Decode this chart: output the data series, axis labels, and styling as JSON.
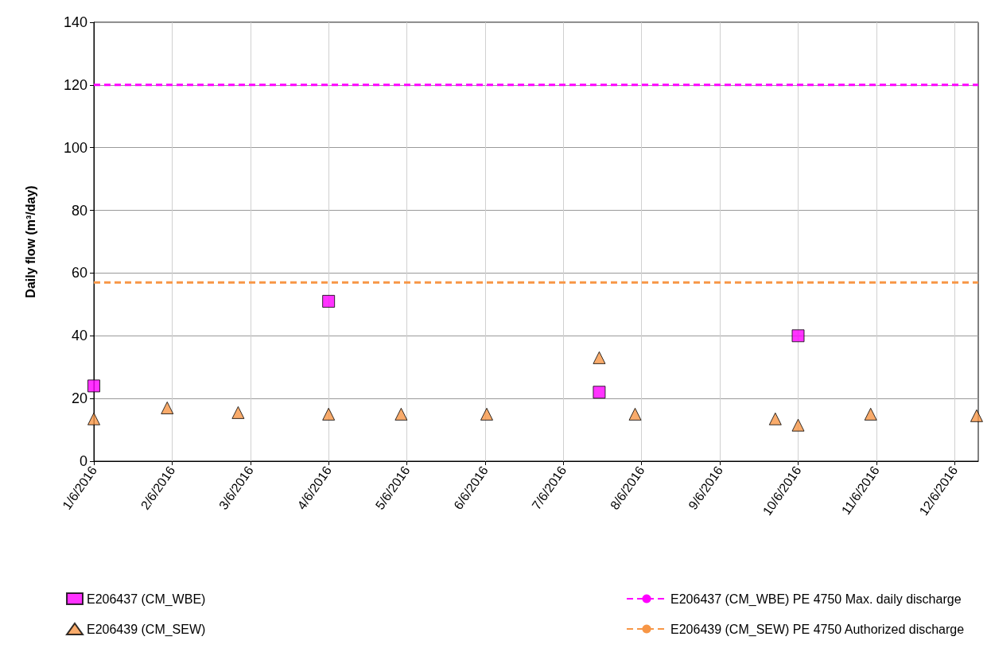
{
  "chart_data": {
    "type": "scatter",
    "ylabel": "Daily flow (m³/day)",
    "series": [
      {
        "name": "E206437 (CM_WBE)",
        "color": "#ff00ff",
        "marker": "square",
        "x": [
          "2016-06-01",
          "2016-06-04",
          "2016-06-07T11:00",
          "2016-06-10"
        ],
        "values": [
          24,
          51,
          22,
          40
        ]
      },
      {
        "name": "E206439 (CM_SEW)",
        "color": "#f79646",
        "marker": "triangle",
        "x": [
          "2016-06-01",
          "2016-06-01T22:30",
          "2016-06-02T20:15",
          "2016-06-04",
          "2016-06-04T22:15",
          "2016-06-06T00:30",
          "2016-06-07T11:00",
          "2016-06-07T22:00",
          "2016-06-09T17:00",
          "2016-06-10",
          "2016-06-10T22:15",
          "2016-06-12T06:45"
        ],
        "values": [
          13.5,
          17,
          15.5,
          15,
          15,
          15,
          33,
          15,
          13.5,
          11.5,
          15,
          14.5
        ]
      }
    ],
    "ref_lines": [
      {
        "axis": "y",
        "value": 120,
        "label": "E206437 (CM_WBE) PE 4750 Max. daily discharge",
        "color": "#ff00ff",
        "line_style": "dashed"
      },
      {
        "axis": "y",
        "value": 57,
        "label": "E206439 (CM_SEW) PE 4750 Authorized discharge",
        "color": "#f79646",
        "line_style": "dashed"
      }
    ],
    "xlim": [
      "2016-06-01",
      "2016-06-12T07:15"
    ],
    "xticks": [
      {
        "value": "2016-06-01",
        "label": "1/6/2016"
      },
      {
        "value": "2016-06-02",
        "label": "2/6/2016"
      },
      {
        "value": "2016-06-03",
        "label": "3/6/2016"
      },
      {
        "value": "2016-06-04",
        "label": "4/6/2016"
      },
      {
        "value": "2016-06-05",
        "label": "5/6/2016"
      },
      {
        "value": "2016-06-06",
        "label": "6/6/2016"
      },
      {
        "value": "2016-06-07",
        "label": "7/6/2016"
      },
      {
        "value": "2016-06-08",
        "label": "8/6/2016"
      },
      {
        "value": "2016-06-09",
        "label": "9/6/2016"
      },
      {
        "value": "2016-06-10",
        "label": "10/6/2016"
      },
      {
        "value": "2016-06-11",
        "label": "11/6/2016"
      },
      {
        "value": "2016-06-12",
        "label": "12/6/2016"
      }
    ],
    "ylim": [
      0,
      140
    ],
    "yticks": [
      0,
      20,
      40,
      60,
      80,
      100,
      120,
      140
    ],
    "grid": true,
    "legend": "bottom"
  }
}
